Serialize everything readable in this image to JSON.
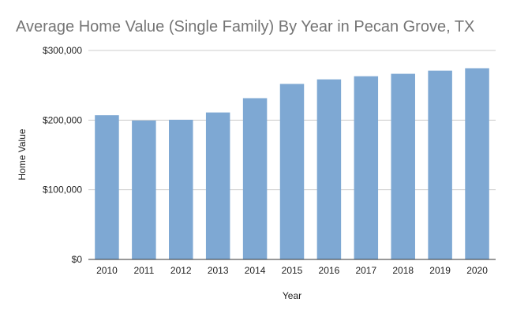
{
  "chart_data": {
    "type": "bar",
    "title": "Average Home Value (Single Family) By Year in Pecan Grove, TX",
    "xlabel": "Year",
    "ylabel": "Home Value",
    "categories": [
      "2010",
      "2011",
      "2012",
      "2013",
      "2014",
      "2015",
      "2016",
      "2017",
      "2018",
      "2019",
      "2020"
    ],
    "values": [
      207000,
      199500,
      200500,
      211000,
      231500,
      252000,
      258500,
      263000,
      266500,
      271000,
      274500
    ],
    "ylim": [
      0,
      300000
    ],
    "yticks": [
      0,
      100000,
      200000,
      300000
    ],
    "ytick_labels": [
      "$0",
      "$100,000",
      "$200,000",
      "$300,000"
    ],
    "grid": true,
    "legend": "none",
    "bar_color": "#7ea8d3"
  }
}
